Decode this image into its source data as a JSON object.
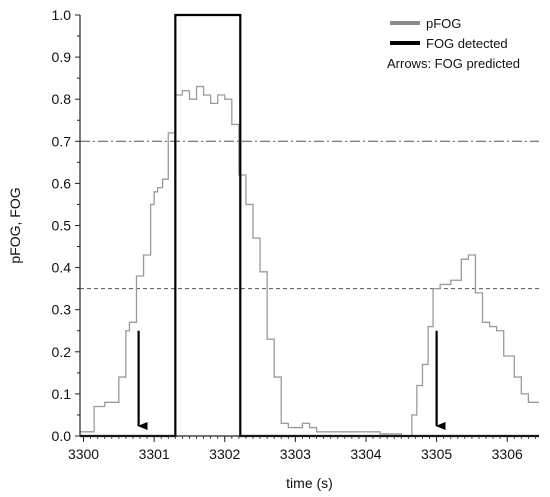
{
  "chart_data": {
    "type": "line",
    "xlabel": "time (s)",
    "ylabel": "pFOG,  FOG",
    "xlim": [
      3299.95,
      3306.45
    ],
    "ylim": [
      0,
      1.0
    ],
    "x_ticks": [
      3300,
      3301,
      3302,
      3303,
      3304,
      3305,
      3306
    ],
    "x_tick_labels": [
      "3300",
      "3301",
      "3302",
      "3303",
      "3304",
      "3305",
      "3306"
    ],
    "y_ticks": [
      0.0,
      0.1,
      0.2,
      0.3,
      0.4,
      0.5,
      0.6,
      0.7,
      0.8,
      0.9,
      1.0
    ],
    "y_tick_labels": [
      "0.0",
      "0.1",
      "0.2",
      "0.3",
      "0.4",
      "0.5",
      "0.6",
      "0.7",
      "0.8",
      "0.9",
      "1.0"
    ],
    "legend": {
      "placement": "top-right",
      "entries": [
        {
          "label": "pFOG",
          "color": "#8a8a8a"
        },
        {
          "label": "FOG detected",
          "color": "#000000"
        },
        {
          "label": "Arrows: FOG predicted",
          "color": ""
        }
      ]
    },
    "series": [
      {
        "name": "pFOG",
        "color": "#9a9a9a",
        "step": true,
        "x": [
          3299.95,
          3300.15,
          3300.3,
          3300.5,
          3300.6,
          3300.65,
          3300.75,
          3300.85,
          3300.95,
          3301.0,
          3301.05,
          3301.12,
          3301.2,
          3301.3,
          3301.4,
          3301.5,
          3301.6,
          3301.7,
          3301.8,
          3301.9,
          3302.0,
          3302.1,
          3302.2,
          3302.3,
          3302.4,
          3302.5,
          3302.6,
          3302.7,
          3302.8,
          3302.9,
          3303.1,
          3303.2,
          3303.3,
          3303.6,
          3304.2,
          3304.5,
          3304.65,
          3304.72,
          3304.8,
          3304.88,
          3304.95,
          3305.05,
          3305.2,
          3305.35,
          3305.45,
          3305.55,
          3305.65,
          3305.75,
          3305.85,
          3305.95,
          3306.1,
          3306.2,
          3306.3,
          3306.35,
          3306.45
        ],
        "y": [
          0.01,
          0.07,
          0.08,
          0.14,
          0.25,
          0.27,
          0.38,
          0.43,
          0.55,
          0.58,
          0.59,
          0.61,
          0.72,
          0.81,
          0.82,
          0.8,
          0.83,
          0.81,
          0.79,
          0.81,
          0.8,
          0.74,
          0.62,
          0.55,
          0.47,
          0.39,
          0.23,
          0.14,
          0.03,
          0.02,
          0.03,
          0.02,
          0.01,
          0.01,
          0.005,
          0.0,
          0.05,
          0.12,
          0.17,
          0.26,
          0.35,
          0.36,
          0.37,
          0.42,
          0.43,
          0.34,
          0.27,
          0.26,
          0.25,
          0.19,
          0.14,
          0.1,
          0.08,
          0.08,
          0.08
        ]
      },
      {
        "name": "FOG detected",
        "color": "#000000",
        "step": true,
        "x": [
          3299.95,
          3301.3,
          3301.3,
          3302.22,
          3302.22,
          3306.45
        ],
        "y": [
          0,
          0,
          1.0,
          1.0,
          0,
          0
        ]
      }
    ],
    "thresholds": [
      {
        "y": 0.7,
        "style": "dash-dot"
      },
      {
        "y": 0.35,
        "style": "dashed"
      }
    ],
    "arrows": [
      {
        "x": 3300.78,
        "y_from": 0.25,
        "y_to": 0.0
      },
      {
        "x": 3305.0,
        "y_from": 0.25,
        "y_to": 0.0
      }
    ]
  }
}
